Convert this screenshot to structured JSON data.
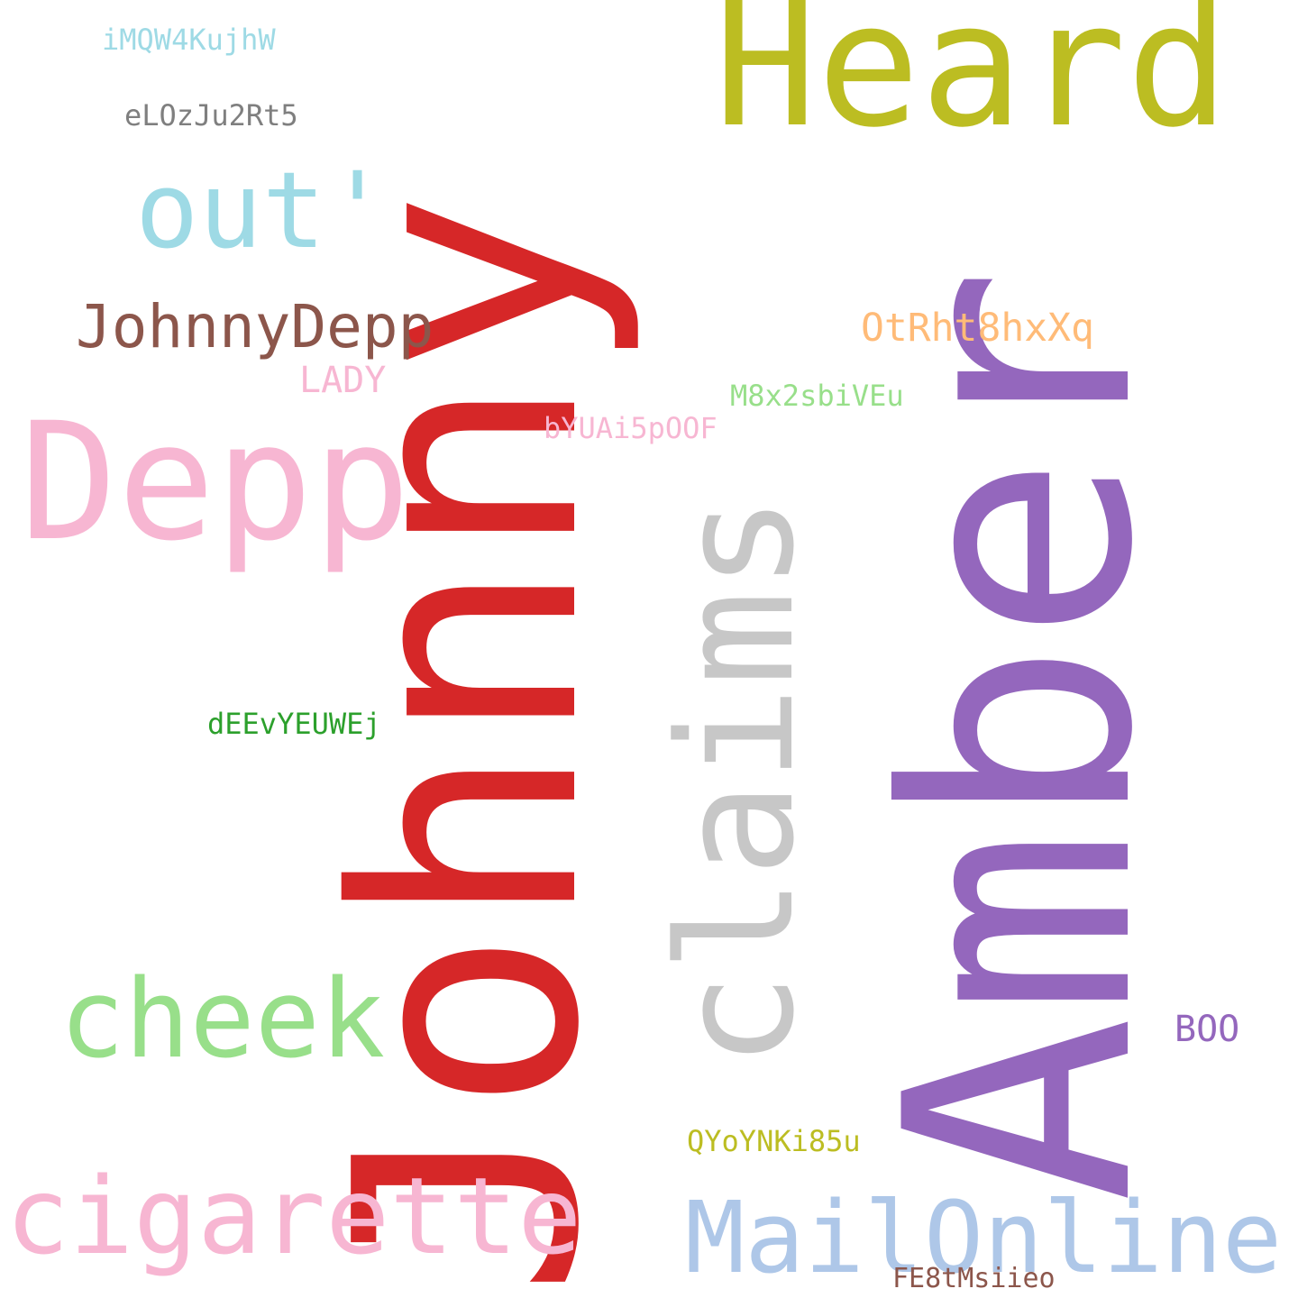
{
  "words": {
    "johnny": {
      "text": "Johnny",
      "color": "#d62728"
    },
    "amber": {
      "text": "Amber",
      "color": "#9467bd"
    },
    "claims": {
      "text": "claims",
      "color": "#c7c7c7"
    },
    "heard": {
      "text": "Heard",
      "color": "#bcbd22"
    },
    "depp": {
      "text": "Depp",
      "color": "#f7b6d2"
    },
    "out": {
      "text": "out'",
      "color": "#9edae5"
    },
    "johnnydepp": {
      "text": "JohnnyDepp",
      "color": "#8c564b"
    },
    "cheek": {
      "text": "cheek",
      "color": "#98df8a"
    },
    "cigarette": {
      "text": "cigarette",
      "color": "#f7b6d2"
    },
    "mailonline": {
      "text": "MailOnline",
      "color": "#aec7e8"
    },
    "otrht": {
      "text": "OtRht8hxXq",
      "color": "#ffbb78"
    },
    "lady": {
      "text": "LADY",
      "color": "#f7b6d2"
    },
    "m8x": {
      "text": "M8x2sbiVEu",
      "color": "#98df8a"
    },
    "byua": {
      "text": "bYUAi5pOOF",
      "color": "#f7b6d2"
    },
    "deev": {
      "text": "dEEvYEUWEj",
      "color": "#2ca02c"
    },
    "imqw": {
      "text": "iMQW4KujhW",
      "color": "#9edae5"
    },
    "elo": {
      "text": "eLOzJu2Rt5",
      "color": "#7f7f7f"
    },
    "boo": {
      "text": "BOO",
      "color": "#9467bd"
    },
    "qyo": {
      "text": "QYoYNKi85u",
      "color": "#bcbd22"
    },
    "fe8": {
      "text": "FE8tMsiieo",
      "color": "#8c564b"
    }
  }
}
